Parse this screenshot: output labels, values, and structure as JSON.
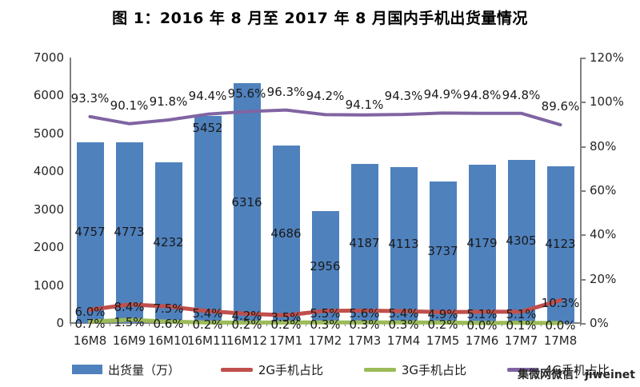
{
  "title": "图 1：2016 年 8 月至 2017 年 8 月国内手机出货量情况",
  "watermark": "集微网微信：jiweinet",
  "chart_data": {
    "type": "bar",
    "categories": [
      "16M8",
      "16M9",
      "16M10",
      "16M11",
      "16M12",
      "17M1",
      "17M2",
      "17M3",
      "17M4",
      "17M5",
      "17M6",
      "17M7",
      "17M8"
    ],
    "series": [
      {
        "name": "出货量（万）",
        "type": "bar",
        "axis": "left",
        "color": "#4f81bd",
        "values": [
          4757,
          4773,
          4232,
          5452,
          6316,
          4686,
          2956,
          4187,
          4113,
          3737,
          4179,
          4305,
          4123
        ]
      },
      {
        "name": "2G手机占比",
        "type": "line",
        "axis": "right",
        "color": "#c0504d",
        "values_percent": [
          6.0,
          8.4,
          7.5,
          5.4,
          4.2,
          3.5,
          5.5,
          5.6,
          5.4,
          4.9,
          5.1,
          5.1,
          10.3
        ]
      },
      {
        "name": "3G手机占比",
        "type": "line",
        "axis": "right",
        "color": "#9bbb59",
        "values_percent": [
          0.7,
          1.5,
          0.6,
          0.2,
          0.2,
          0.2,
          0.3,
          0.3,
          0.3,
          0.2,
          0.0,
          0.1,
          0.0
        ]
      },
      {
        "name": "4G手机占比",
        "type": "line",
        "axis": "right",
        "color": "#8064a2",
        "values_percent": [
          93.3,
          90.1,
          91.8,
          94.4,
          95.6,
          96.3,
          94.2,
          94.1,
          94.3,
          94.9,
          94.8,
          94.8,
          89.6
        ]
      }
    ],
    "left_axis": {
      "min": 0,
      "max": 7000,
      "ticks": [
        "7000",
        "6000",
        "5000",
        "4000",
        "3000",
        "2000",
        "1000",
        "0"
      ]
    },
    "right_axis": {
      "min": 0,
      "max": 120,
      "ticks": [
        "120%",
        "100%",
        "80%",
        "60%",
        "40%",
        "20%",
        "0%"
      ]
    },
    "legend_position": "bottom",
    "grid": false
  }
}
